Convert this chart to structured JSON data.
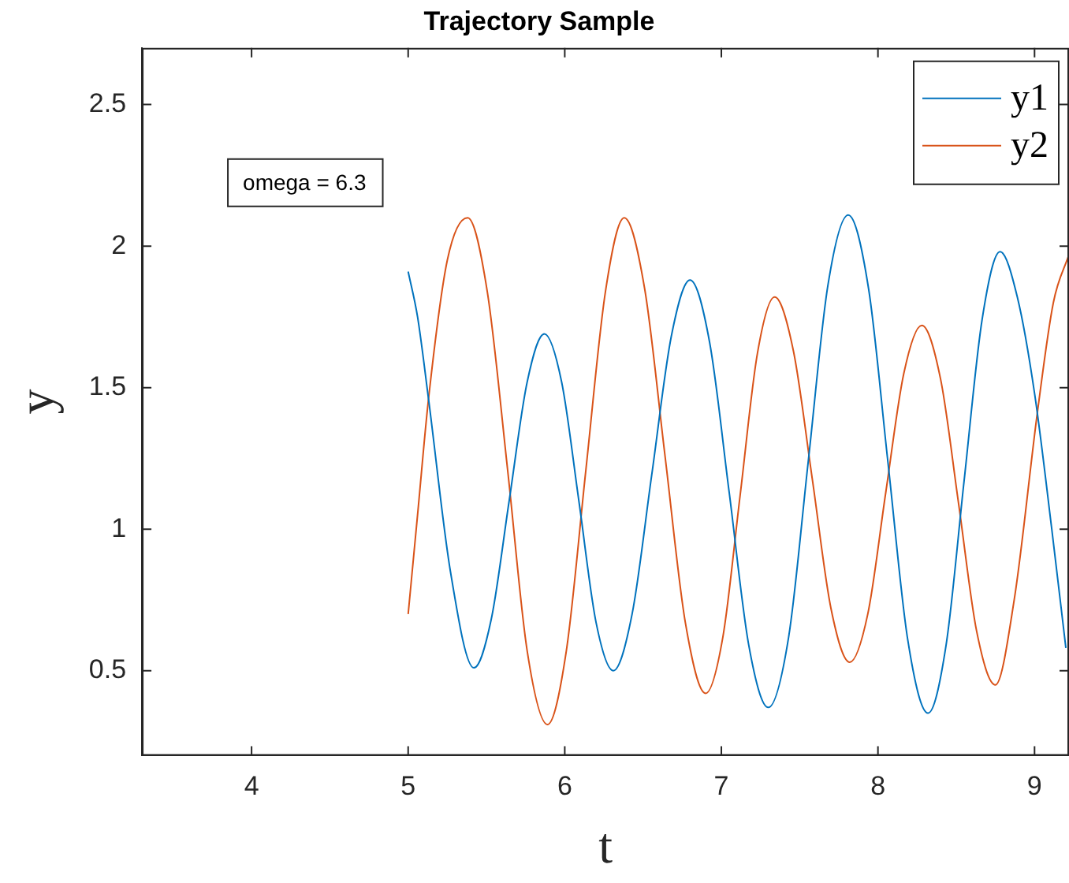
{
  "chart_data": {
    "type": "line",
    "title": "Trajectory Sample",
    "xlabel": "t",
    "ylabel": "y",
    "xlim": [
      3.3,
      9.22
    ],
    "xticks": [
      4,
      5,
      6,
      7,
      8,
      9
    ],
    "ylim": [
      0.2,
      2.7
    ],
    "yticks": [
      0.5,
      1,
      1.5,
      2,
      2.5
    ],
    "grid": false,
    "legend": "top right",
    "marker": "none",
    "line_style": "solid",
    "annotations": [
      "omega = 6.3"
    ],
    "series": [
      {
        "name": "y1",
        "color": "#0072bd",
        "x": [
          5.0,
          5.06,
          5.13,
          5.27,
          5.42,
          5.53,
          5.645,
          5.76,
          5.87,
          5.98,
          6.09,
          6.2,
          6.31,
          6.43,
          6.555,
          6.68,
          6.8,
          6.925,
          7.05,
          7.175,
          7.3,
          7.43,
          7.555,
          7.68,
          7.81,
          7.94,
          8.065,
          8.19,
          8.32,
          8.435,
          8.55,
          8.665,
          8.78,
          8.89,
          9.0,
          9.11,
          9.2
        ],
        "values": [
          1.91,
          1.75,
          1.46,
          0.85,
          0.51,
          0.68,
          1.1,
          1.52,
          1.69,
          1.52,
          1.1,
          0.67,
          0.5,
          0.7,
          1.19,
          1.68,
          1.88,
          1.66,
          1.13,
          0.59,
          0.37,
          0.62,
          1.24,
          1.86,
          2.11,
          1.85,
          1.23,
          0.61,
          0.35,
          0.59,
          1.17,
          1.74,
          1.98,
          1.82,
          1.48,
          1.0,
          0.58
        ]
      },
      {
        "name": "y2",
        "color": "#d95319",
        "x": [
          5.0,
          5.06,
          5.13,
          5.25,
          5.38,
          5.505,
          5.635,
          5.76,
          5.89,
          6.01,
          6.135,
          6.26,
          6.38,
          6.51,
          6.64,
          6.77,
          6.9,
          7.01,
          7.12,
          7.23,
          7.34,
          7.46,
          7.58,
          7.7,
          7.82,
          7.935,
          8.05,
          8.165,
          8.28,
          8.4,
          8.515,
          8.63,
          8.75,
          8.87,
          9.02,
          9.12,
          9.22
        ],
        "values": [
          0.7,
          1.05,
          1.46,
          1.95,
          2.1,
          1.84,
          1.21,
          0.57,
          0.31,
          0.57,
          1.21,
          1.84,
          2.1,
          1.85,
          1.26,
          0.67,
          0.42,
          0.62,
          1.12,
          1.62,
          1.82,
          1.63,
          1.18,
          0.72,
          0.53,
          0.7,
          1.13,
          1.55,
          1.72,
          1.53,
          1.09,
          0.64,
          0.45,
          0.75,
          1.42,
          1.8,
          1.97
        ]
      }
    ]
  }
}
